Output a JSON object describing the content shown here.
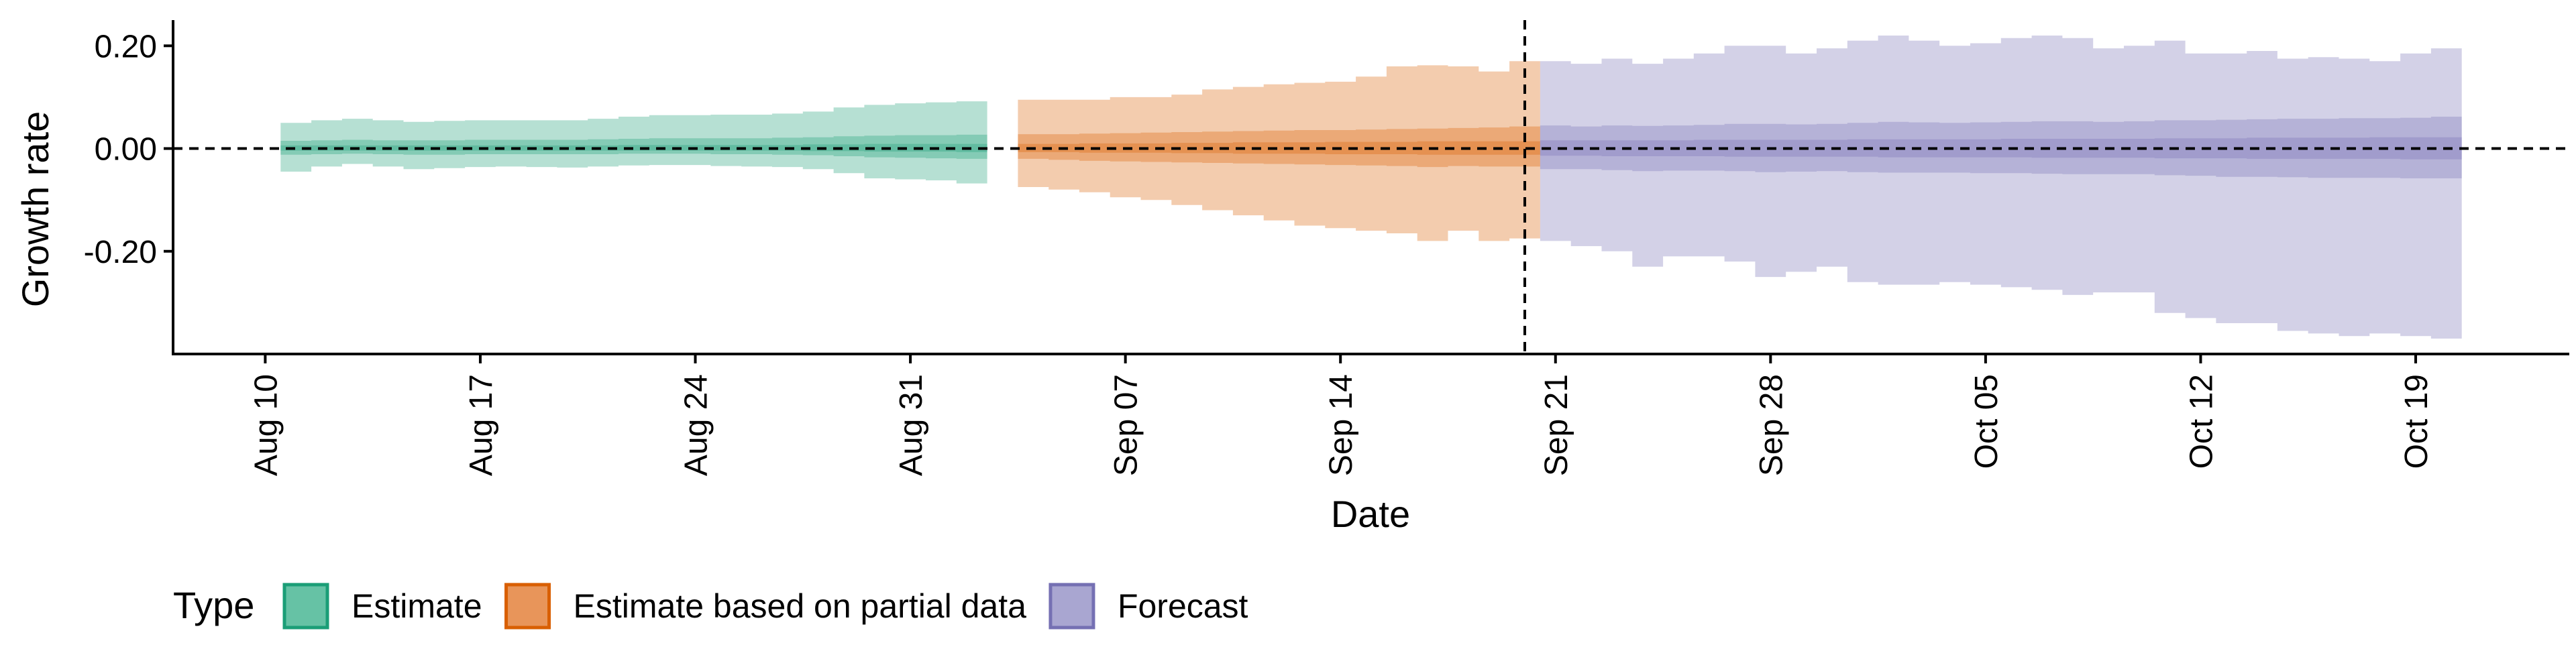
{
  "chart_data": {
    "type": "area",
    "xlabel": "Date",
    "ylabel": "Growth rate",
    "xlim": [
      "2020-08-07",
      "2020-10-24"
    ],
    "ylim": [
      -0.4,
      0.25
    ],
    "x_ticks": [
      {
        "date": "2020-08-10",
        "label": "Aug 10"
      },
      {
        "date": "2020-08-17",
        "label": "Aug 17"
      },
      {
        "date": "2020-08-24",
        "label": "Aug 24"
      },
      {
        "date": "2020-08-31",
        "label": "Aug 31"
      },
      {
        "date": "2020-09-07",
        "label": "Sep 07"
      },
      {
        "date": "2020-09-14",
        "label": "Sep 14"
      },
      {
        "date": "2020-09-21",
        "label": "Sep 21"
      },
      {
        "date": "2020-09-28",
        "label": "Sep 28"
      },
      {
        "date": "2020-10-05",
        "label": "Oct 05"
      },
      {
        "date": "2020-10-12",
        "label": "Oct 12"
      },
      {
        "date": "2020-10-19",
        "label": "Oct 19"
      }
    ],
    "y_ticks": [
      {
        "value": 0.2,
        "label": "0.20"
      },
      {
        "value": 0.0,
        "label": "0.00"
      },
      {
        "value": -0.2,
        "label": "-0.20"
      }
    ],
    "hline": 0,
    "vline": "2020-09-20",
    "grid": false,
    "legend": {
      "title": "Type",
      "position": "bottom",
      "entries": [
        {
          "label": "Estimate",
          "fill": "#66c2a5",
          "stroke": "#1b9e77"
        },
        {
          "label": "Estimate based on partial data",
          "fill": "#e8955a",
          "stroke": "#d95f02"
        },
        {
          "label": "Forecast",
          "fill": "#a9a6d1",
          "stroke": "#7570b3"
        }
      ]
    },
    "series": [
      {
        "name": "Estimate",
        "color": "#1b9e77",
        "x": [
          "2020-08-11",
          "2020-08-12",
          "2020-08-13",
          "2020-08-14",
          "2020-08-15",
          "2020-08-16",
          "2020-08-17",
          "2020-08-18",
          "2020-08-19",
          "2020-08-20",
          "2020-08-21",
          "2020-08-22",
          "2020-08-23",
          "2020-08-24",
          "2020-08-25",
          "2020-08-26",
          "2020-08-27",
          "2020-08-28",
          "2020-08-29",
          "2020-08-30",
          "2020-08-31",
          "2020-09-01",
          "2020-09-02"
        ],
        "lower_90": [
          -0.045,
          -0.035,
          -0.03,
          -0.035,
          -0.04,
          -0.038,
          -0.036,
          -0.035,
          -0.036,
          -0.037,
          -0.035,
          -0.033,
          -0.032,
          -0.032,
          -0.034,
          -0.035,
          -0.036,
          -0.04,
          -0.048,
          -0.058,
          -0.06,
          -0.062,
          -0.068
        ],
        "upper_90": [
          0.05,
          0.055,
          0.058,
          0.055,
          0.052,
          0.054,
          0.055,
          0.055,
          0.055,
          0.055,
          0.058,
          0.062,
          0.065,
          0.065,
          0.066,
          0.066,
          0.068,
          0.072,
          0.08,
          0.085,
          0.088,
          0.09,
          0.092
        ],
        "lower_50": [
          -0.012,
          -0.011,
          -0.01,
          -0.011,
          -0.012,
          -0.012,
          -0.011,
          -0.011,
          -0.011,
          -0.011,
          -0.011,
          -0.01,
          -0.01,
          -0.01,
          -0.011,
          -0.011,
          -0.012,
          -0.013,
          -0.015,
          -0.017,
          -0.018,
          -0.019,
          -0.02
        ],
        "upper_50": [
          0.015,
          0.016,
          0.017,
          0.016,
          0.016,
          0.016,
          0.017,
          0.017,
          0.017,
          0.017,
          0.018,
          0.019,
          0.02,
          0.02,
          0.02,
          0.02,
          0.021,
          0.022,
          0.024,
          0.025,
          0.026,
          0.026,
          0.027
        ],
        "lower_20": [
          -0.004,
          -0.004,
          -0.004,
          -0.004,
          -0.004,
          -0.004,
          -0.004,
          -0.004,
          -0.004,
          -0.004,
          -0.004,
          -0.004,
          -0.004,
          -0.004,
          -0.004,
          -0.004,
          -0.004,
          -0.005,
          -0.005,
          -0.006,
          -0.006,
          -0.006,
          -0.007
        ],
        "upper_20": [
          0.006,
          0.006,
          0.006,
          0.006,
          0.006,
          0.006,
          0.006,
          0.006,
          0.006,
          0.006,
          0.006,
          0.007,
          0.007,
          0.007,
          0.007,
          0.007,
          0.007,
          0.008,
          0.008,
          0.009,
          0.009,
          0.009,
          0.009
        ]
      },
      {
        "name": "Estimate based on partial data",
        "color": "#d95f02",
        "x": [
          "2020-09-04",
          "2020-09-05",
          "2020-09-06",
          "2020-09-07",
          "2020-09-08",
          "2020-09-09",
          "2020-09-10",
          "2020-09-11",
          "2020-09-12",
          "2020-09-13",
          "2020-09-14",
          "2020-09-15",
          "2020-09-16",
          "2020-09-17",
          "2020-09-18",
          "2020-09-19",
          "2020-09-20"
        ],
        "lower_90": [
          -0.075,
          -0.08,
          -0.085,
          -0.095,
          -0.1,
          -0.11,
          -0.12,
          -0.13,
          -0.14,
          -0.15,
          -0.155,
          -0.16,
          -0.165,
          -0.18,
          -0.16,
          -0.18,
          -0.175
        ],
        "upper_90": [
          0.095,
          0.095,
          0.095,
          0.1,
          0.1,
          0.105,
          0.115,
          0.12,
          0.125,
          0.128,
          0.13,
          0.14,
          0.16,
          0.162,
          0.16,
          0.15,
          0.17
        ],
        "lower_50": [
          -0.02,
          -0.022,
          -0.024,
          -0.025,
          -0.026,
          -0.027,
          -0.028,
          -0.029,
          -0.03,
          -0.031,
          -0.032,
          -0.033,
          -0.034,
          -0.036,
          -0.034,
          -0.035,
          -0.035
        ],
        "upper_50": [
          0.028,
          0.028,
          0.029,
          0.03,
          0.031,
          0.032,
          0.033,
          0.034,
          0.035,
          0.036,
          0.036,
          0.037,
          0.038,
          0.039,
          0.04,
          0.041,
          0.043
        ],
        "lower_20": [
          -0.007,
          -0.007,
          -0.008,
          -0.008,
          -0.008,
          -0.009,
          -0.009,
          -0.01,
          -0.01,
          -0.01,
          -0.011,
          -0.011,
          -0.011,
          -0.012,
          -0.012,
          -0.012,
          -0.012
        ],
        "upper_20": [
          0.009,
          0.009,
          0.01,
          0.01,
          0.01,
          0.011,
          0.011,
          0.012,
          0.012,
          0.012,
          0.013,
          0.013,
          0.013,
          0.014,
          0.014,
          0.014,
          0.014
        ]
      },
      {
        "name": "Forecast",
        "color": "#7570b3",
        "x": [
          "2020-09-21",
          "2020-09-22",
          "2020-09-23",
          "2020-09-24",
          "2020-09-25",
          "2020-09-26",
          "2020-09-27",
          "2020-09-28",
          "2020-09-29",
          "2020-09-30",
          "2020-10-01",
          "2020-10-02",
          "2020-10-03",
          "2020-10-04",
          "2020-10-05",
          "2020-10-06",
          "2020-10-07",
          "2020-10-08",
          "2020-10-09",
          "2020-10-10",
          "2020-10-11",
          "2020-10-12",
          "2020-10-13",
          "2020-10-14",
          "2020-10-15",
          "2020-10-16",
          "2020-10-17",
          "2020-10-18",
          "2020-10-19",
          "2020-10-20"
        ],
        "lower_90": [
          -0.18,
          -0.19,
          -0.2,
          -0.23,
          -0.21,
          -0.21,
          -0.22,
          -0.25,
          -0.24,
          -0.23,
          -0.26,
          -0.265,
          -0.265,
          -0.26,
          -0.265,
          -0.27,
          -0.275,
          -0.285,
          -0.28,
          -0.28,
          -0.32,
          -0.33,
          -0.34,
          -0.34,
          -0.355,
          -0.36,
          -0.365,
          -0.36,
          -0.365,
          -0.37
        ],
        "upper_90": [
          0.17,
          0.165,
          0.175,
          0.165,
          0.175,
          0.185,
          0.2,
          0.2,
          0.185,
          0.195,
          0.21,
          0.22,
          0.21,
          0.2,
          0.205,
          0.215,
          0.22,
          0.215,
          0.195,
          0.2,
          0.21,
          0.185,
          0.185,
          0.19,
          0.175,
          0.178,
          0.175,
          0.17,
          0.185,
          0.195
        ],
        "lower_50": [
          -0.04,
          -0.04,
          -0.042,
          -0.044,
          -0.043,
          -0.043,
          -0.044,
          -0.046,
          -0.045,
          -0.044,
          -0.046,
          -0.047,
          -0.047,
          -0.047,
          -0.048,
          -0.048,
          -0.049,
          -0.05,
          -0.05,
          -0.05,
          -0.052,
          -0.053,
          -0.055,
          -0.055,
          -0.056,
          -0.057,
          -0.057,
          -0.057,
          -0.058,
          -0.058
        ],
        "upper_50": [
          0.045,
          0.043,
          0.045,
          0.044,
          0.045,
          0.046,
          0.048,
          0.048,
          0.047,
          0.048,
          0.05,
          0.052,
          0.051,
          0.05,
          0.051,
          0.052,
          0.053,
          0.053,
          0.052,
          0.053,
          0.055,
          0.055,
          0.056,
          0.057,
          0.058,
          0.058,
          0.059,
          0.059,
          0.06,
          0.062
        ],
        "lower_20": [
          -0.014,
          -0.014,
          -0.015,
          -0.015,
          -0.015,
          -0.015,
          -0.016,
          -0.016,
          -0.016,
          -0.016,
          -0.016,
          -0.017,
          -0.017,
          -0.017,
          -0.017,
          -0.017,
          -0.018,
          -0.018,
          -0.018,
          -0.018,
          -0.019,
          -0.019,
          -0.019,
          -0.02,
          -0.02,
          -0.02,
          -0.02,
          -0.02,
          -0.021,
          -0.021
        ],
        "upper_20": [
          0.016,
          0.016,
          0.016,
          0.016,
          0.016,
          0.017,
          0.017,
          0.017,
          0.017,
          0.017,
          0.018,
          0.018,
          0.018,
          0.018,
          0.018,
          0.019,
          0.019,
          0.019,
          0.019,
          0.019,
          0.02,
          0.02,
          0.02,
          0.021,
          0.021,
          0.021,
          0.021,
          0.022,
          0.022,
          0.022
        ]
      }
    ]
  }
}
